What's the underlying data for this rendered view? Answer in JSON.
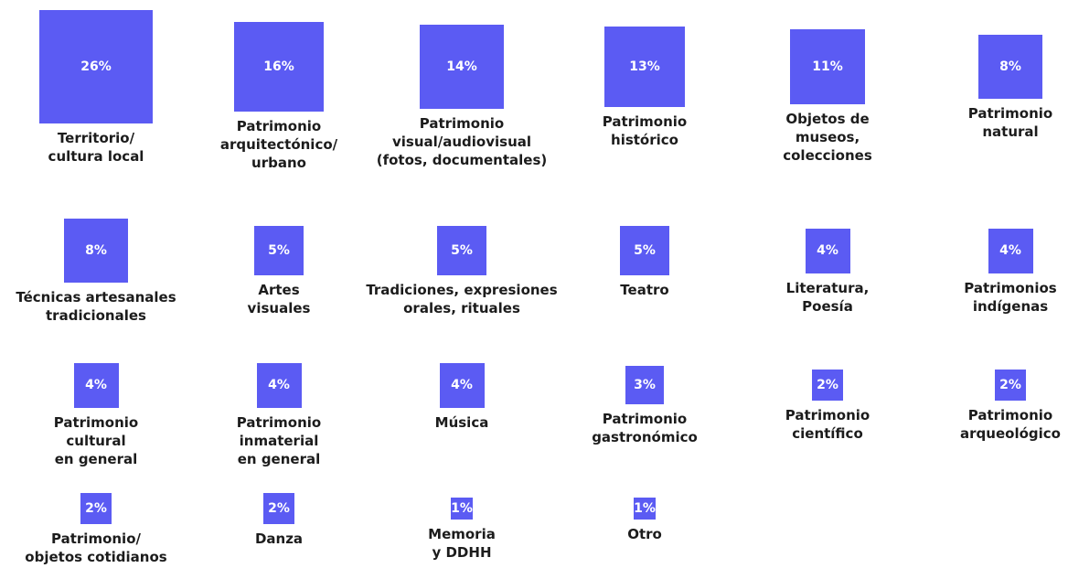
{
  "chart_data": {
    "type": "squares",
    "color": "#5b5bf3",
    "categories": [
      "Territorio/\ncultura local",
      "Patrimonio\narquitectónico/\nurbano",
      "Patrimonio\nvisual/audiovisual\n(fotos, documentales)",
      "Patrimonio\nhistórico",
      "Objetos de\nmuseos,\ncolecciones",
      "Patrimonio\nnatural",
      "Técnicas artesanales\ntradicionales",
      "Artes\nvisuales",
      "Tradiciones, expresiones\norales, rituales",
      "Teatro",
      "Literatura,\nPoesía",
      "Patrimonios\nindígenas",
      "Patrimonio\ncultural\nen general",
      "Patrimonio\ninmaterial\nen general",
      "Música",
      "Patrimonio\ngastronómico",
      "Patrimonio\ncientífico",
      "Patrimonio\narqueológico",
      "Patrimonio/\nobjetos cotidianos",
      "Danza",
      "Memoria\ny DDHH",
      "Otro"
    ],
    "values": [
      26,
      16,
      14,
      13,
      11,
      8,
      8,
      5,
      5,
      5,
      4,
      4,
      4,
      4,
      4,
      3,
      2,
      2,
      2,
      2,
      1,
      1
    ],
    "value_labels": [
      "26%",
      "16%",
      "14%",
      "13%",
      "11%",
      "8%",
      "8%",
      "5%",
      "5%",
      "5%",
      "4%",
      "4%",
      "4%",
      "4%",
      "4%",
      "3%",
      "2%",
      "2%",
      "2%",
      "2%",
      "1%",
      "1%"
    ]
  }
}
